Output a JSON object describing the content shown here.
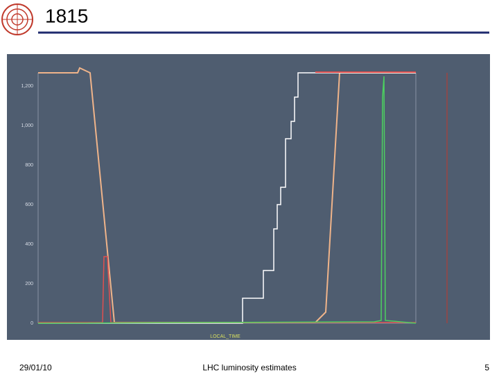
{
  "header": {
    "title": "1815"
  },
  "figure": {
    "y_axis_labels": [
      "1,200",
      "1,000",
      "800",
      "600",
      "400",
      "200",
      "0"
    ],
    "x_axis_title": "LOCAL_TIME"
  },
  "footer": {
    "date": "29/01/10",
    "title": "LHC luminosity estimates",
    "page": "5"
  }
}
